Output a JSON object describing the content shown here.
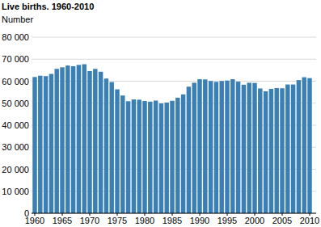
{
  "chart_data": {
    "type": "bar",
    "title": "Live births. 1960-2010",
    "y_label": "Number",
    "categories": [
      "1960",
      null,
      null,
      null,
      null,
      "1965",
      null,
      null,
      null,
      null,
      "1970",
      null,
      null,
      null,
      null,
      "1975",
      null,
      null,
      null,
      null,
      "1980",
      null,
      null,
      null,
      null,
      "1985",
      null,
      null,
      null,
      null,
      "1990",
      null,
      null,
      null,
      null,
      "1995",
      null,
      null,
      null,
      null,
      "2000",
      null,
      null,
      null,
      null,
      "2005",
      null,
      null,
      null,
      null,
      "2010"
    ],
    "values": [
      61900,
      62500,
      62300,
      63300,
      65600,
      66300,
      67100,
      66800,
      67400,
      67700,
      64600,
      65600,
      64300,
      61200,
      59600,
      56300,
      53500,
      50900,
      51700,
      51600,
      51000,
      50700,
      51200,
      49900,
      50300,
      51100,
      52500,
      54000,
      57500,
      59300,
      60900,
      60800,
      60100,
      59700,
      60100,
      60300,
      60900,
      59800,
      58400,
      59300,
      59200,
      56700,
      55400,
      56500,
      56900,
      56800,
      58500,
      58500,
      60500,
      61800,
      61400
    ],
    "color": "#3b80b5",
    "ylim": [
      0,
      80000
    ],
    "yticks": [
      0,
      {
        "value": 10000,
        "label": "10 000"
      },
      {
        "value": 20000,
        "label": "20 000"
      },
      {
        "value": 30000,
        "label": "30 000"
      },
      {
        "value": 40000,
        "label": "40 000"
      },
      {
        "value": 50000,
        "label": "50 000"
      },
      {
        "value": 60000,
        "label": "60 000"
      },
      {
        "value": 70000,
        "label": "70 000"
      },
      {
        "value": 80000,
        "label": "80 000"
      }
    ],
    "grid": true
  }
}
